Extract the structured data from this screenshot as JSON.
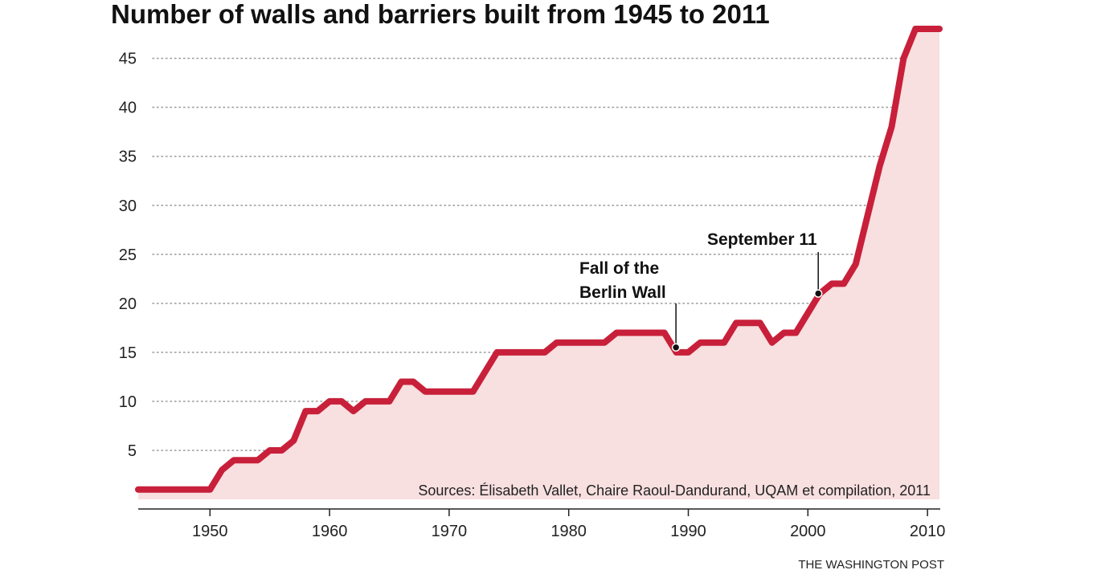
{
  "colors": {
    "line": "#c8203a",
    "area": "#f8dfe0",
    "grid": "#999999",
    "axis": "#222222"
  },
  "chart_data": {
    "type": "area",
    "title": "Number of walls and barriers built from 1945 to 2011",
    "xlabel": "",
    "ylabel": "",
    "xlim": [
      1944,
      2011
    ],
    "ylim": [
      0,
      48
    ],
    "x_ticks": [
      1950,
      1960,
      1970,
      1980,
      1990,
      2000,
      2010
    ],
    "y_ticks": [
      5,
      10,
      15,
      20,
      25,
      30,
      35,
      40,
      45
    ],
    "grid": "horizontal dotted",
    "series": [
      {
        "x": [
          1944,
          1950,
          1951,
          1952,
          1953,
          1954,
          1955,
          1956,
          1957,
          1958,
          1959,
          1960,
          1961,
          1962,
          1963,
          1964,
          1965,
          1966,
          1967,
          1968,
          1969,
          1970,
          1971,
          1972,
          1973,
          1974,
          1975,
          1976,
          1977,
          1978,
          1979,
          1980,
          1981,
          1982,
          1983,
          1984,
          1985,
          1986,
          1987,
          1988,
          1989,
          1990,
          1991,
          1992,
          1993,
          1994,
          1995,
          1996,
          1997,
          1998,
          1999,
          2000,
          2001,
          2002,
          2003,
          2004,
          2005,
          2006,
          2007,
          2008,
          2009,
          2010,
          2011
        ],
        "values": [
          1,
          1,
          3,
          4,
          4,
          4,
          5,
          5,
          6,
          9,
          9,
          10,
          10,
          9,
          10,
          10,
          10,
          12,
          12,
          11,
          11,
          11,
          11,
          11,
          13,
          15,
          15,
          15,
          15,
          15,
          16,
          16,
          16,
          16,
          16,
          17,
          17,
          17,
          17,
          17,
          15,
          15,
          16,
          16,
          16,
          18,
          18,
          18,
          16,
          17,
          17,
          19,
          21,
          22,
          22,
          24,
          29,
          34,
          38,
          45,
          48,
          48,
          48
        ]
      }
    ],
    "annotations": [
      {
        "lines": [
          "Fall of the",
          "Berlin Wall"
        ],
        "x": 1989,
        "y": 15.5
      },
      {
        "lines": [
          "September 11"
        ],
        "x": 2001,
        "y": 21
      }
    ],
    "source": "Sources: Élisabeth Vallet, Chaire Raoul-Dandurand, UQAM et compilation, 2011",
    "credit": "THE WASHINGTON POST"
  }
}
